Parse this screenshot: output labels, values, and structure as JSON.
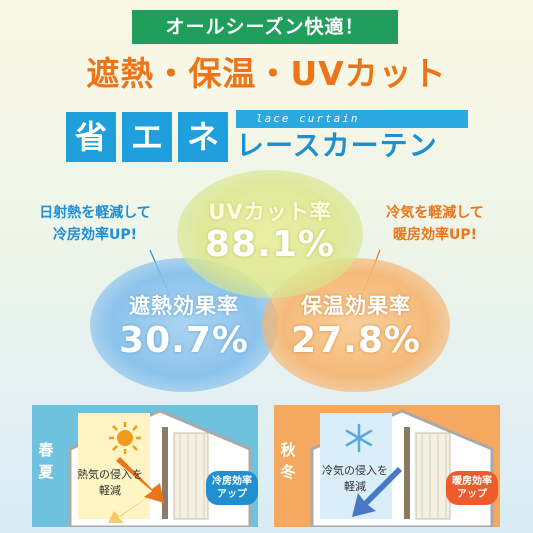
{
  "header": {
    "banner": "オールシーズン快適！",
    "headline": "遮熱・保温・UVカット",
    "title_chars": [
      "省",
      "エ",
      "ネ"
    ],
    "subtitle_en": "lace curtain",
    "product": "レースカーテン"
  },
  "stats": {
    "uv": {
      "label": "UVカット率",
      "value": "88.1%"
    },
    "heat": {
      "label": "遮熱効果率",
      "value": "30.7%"
    },
    "warm": {
      "label": "保温効果率",
      "value": "27.8%"
    }
  },
  "callouts": {
    "left": [
      "日射熱を軽減して",
      "冷房効率UP!"
    ],
    "right": [
      "冷気を軽減して",
      "暖房効率UP!"
    ]
  },
  "panels": {
    "summer": {
      "season": [
        "春",
        "夏"
      ],
      "note": [
        "熱気の侵入を",
        "軽減"
      ],
      "badge": [
        "冷房効率",
        "アップ"
      ]
    },
    "winter": {
      "season": [
        "秋",
        "冬"
      ],
      "note": [
        "冷気の侵入を",
        "軽減"
      ],
      "badge": [
        "暖房効率",
        "アップ"
      ]
    }
  },
  "colors": {
    "green": "#1f9e5c",
    "orange": "#ee7418",
    "blue": "#1f9fdc"
  },
  "icons": {
    "summer": "sun-icon",
    "winter": "snowflake-icon"
  }
}
